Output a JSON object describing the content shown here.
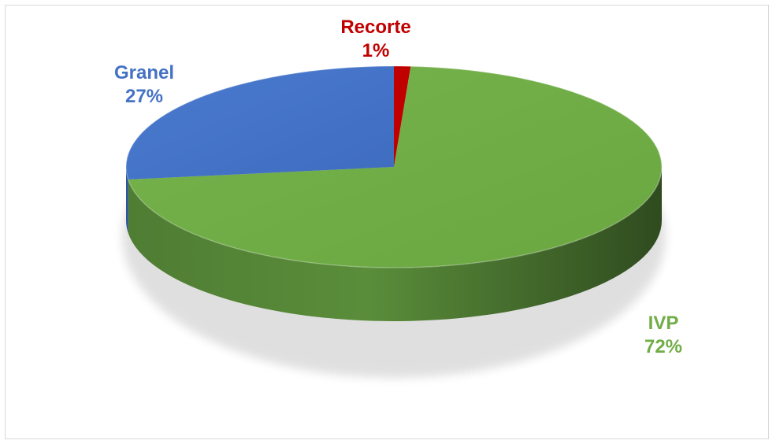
{
  "chart_data": {
    "type": "pie",
    "style": "3d",
    "slices": [
      {
        "label": "IVP",
        "percent_label": "72%",
        "value": 72,
        "color": "#70AD47"
      },
      {
        "label": "Granel",
        "percent_label": "27%",
        "value": 27,
        "color": "#4472C4"
      },
      {
        "label": "Recorte",
        "percent_label": "1%",
        "value": 1,
        "color": "#C00000"
      }
    ],
    "legend": "none"
  }
}
